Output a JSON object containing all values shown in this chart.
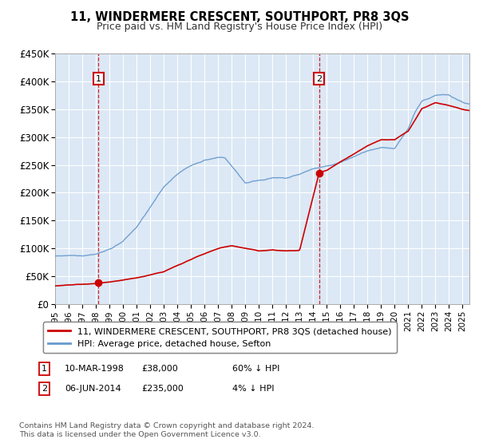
{
  "title": "11, WINDERMERE CRESCENT, SOUTHPORT, PR8 3QS",
  "subtitle": "Price paid vs. HM Land Registry's House Price Index (HPI)",
  "legend_line1": "11, WINDERMERE CRESCENT, SOUTHPORT, PR8 3QS (detached house)",
  "legend_line2": "HPI: Average price, detached house, Sefton",
  "sale1_date": "10-MAR-1998",
  "sale1_price": 38000,
  "sale1_label": "60% ↓ HPI",
  "sale2_date": "06-JUN-2014",
  "sale2_price": 235000,
  "sale2_label": "4% ↓ HPI",
  "footnote": "Contains HM Land Registry data © Crown copyright and database right 2024.\nThis data is licensed under the Open Government Licence v3.0.",
  "ylim": [
    0,
    450000
  ],
  "yticks": [
    0,
    50000,
    100000,
    150000,
    200000,
    250000,
    300000,
    350000,
    400000,
    450000
  ],
  "ytick_labels": [
    "£0",
    "£50K",
    "£100K",
    "£150K",
    "£200K",
    "£250K",
    "£300K",
    "£350K",
    "£400K",
    "£450K"
  ],
  "xstart": 1995.0,
  "xend": 2025.5,
  "sale1_x": 1998.19,
  "sale2_x": 2014.43,
  "plot_bg_color": "#dce8f5",
  "fig_bg_color": "#ffffff",
  "grid_color": "#ffffff",
  "red_line_color": "#cc0000",
  "blue_line_color": "#6699cc",
  "marker_box_color": "#cc0000",
  "hpi_knots_t": [
    1995,
    1996,
    1997,
    1998,
    1999,
    2000,
    2001,
    2002,
    2003,
    2004,
    2005,
    2006,
    2007,
    2007.5,
    2008,
    2009,
    2010,
    2011,
    2012,
    2013,
    2014,
    2015,
    2016,
    2017,
    2018,
    2019,
    2020,
    2021,
    2021.5,
    2022,
    2023,
    2024,
    2025,
    2025.5
  ],
  "hpi_knots_v": [
    85000,
    87000,
    88000,
    92000,
    100000,
    115000,
    140000,
    175000,
    210000,
    235000,
    250000,
    260000,
    265000,
    265000,
    250000,
    220000,
    225000,
    230000,
    228000,
    235000,
    245000,
    248000,
    255000,
    265000,
    275000,
    278000,
    275000,
    310000,
    340000,
    360000,
    370000,
    370000,
    358000,
    355000
  ],
  "red_knots_t": [
    1995,
    1998.19,
    2001,
    2003,
    2005,
    2007,
    2008,
    2009,
    2010,
    2011,
    2012,
    2013,
    2014.43,
    2015,
    2016,
    2017,
    2018,
    2019,
    2020,
    2021,
    2022,
    2023,
    2024,
    2025,
    2025.5
  ],
  "red_knots_v": [
    35000,
    38000,
    48000,
    58000,
    80000,
    100000,
    105000,
    100000,
    95000,
    97000,
    95000,
    96000,
    235000,
    240000,
    255000,
    270000,
    285000,
    295000,
    295000,
    310000,
    350000,
    360000,
    355000,
    348000,
    345000
  ]
}
